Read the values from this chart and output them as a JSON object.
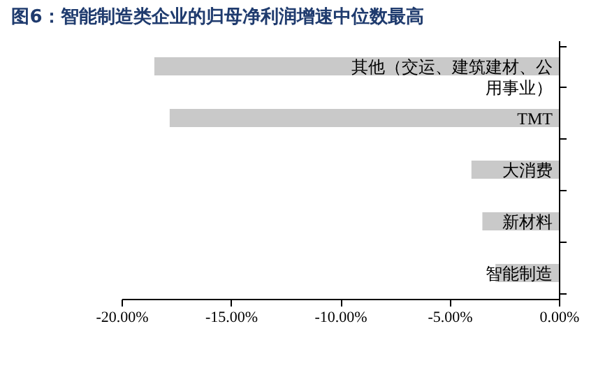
{
  "chart_data": {
    "type": "bar",
    "orientation": "horizontal",
    "title": "图6：智能制造类企业的归母净利润增速中位数最高",
    "categories": [
      "其他（交运、建筑建材、公用事业）",
      "TMT",
      "大消费",
      "新材料",
      "智能制造"
    ],
    "values": [
      -18.5,
      -17.8,
      -4.0,
      -3.5,
      -2.9
    ],
    "color": "#c9c9c9",
    "xlim": [
      -20,
      0
    ],
    "xticks": [
      {
        "value": -20,
        "label": "-20.00%"
      },
      {
        "value": -15,
        "label": "-15.00%"
      },
      {
        "value": -10,
        "label": "-10.00%"
      },
      {
        "value": -5,
        "label": "-5.00%"
      },
      {
        "value": 0,
        "label": "0.00%"
      }
    ],
    "grid": false
  }
}
